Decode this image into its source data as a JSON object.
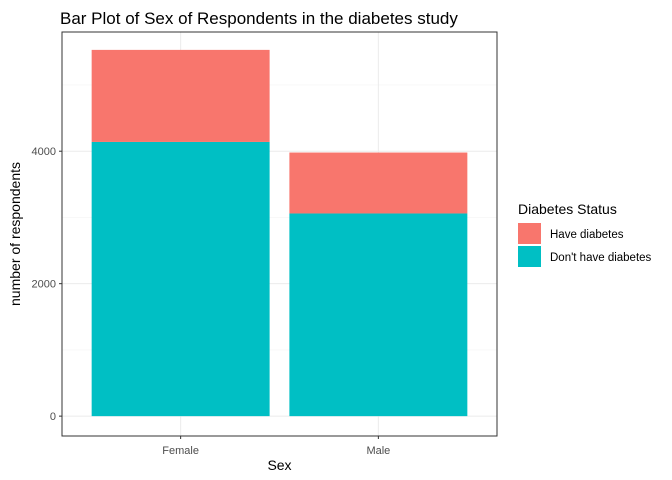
{
  "chart_data": {
    "type": "bar",
    "stacked": true,
    "title": "Bar Plot of Sex of Respondents in the diabetes study",
    "xlabel": "Sex",
    "ylabel": "number of respondents",
    "categories": [
      "Female",
      "Male"
    ],
    "y_ticks": [
      0,
      2000,
      4000
    ],
    "ylim": [
      -300,
      5800
    ],
    "grid": true,
    "legend": {
      "title": "Diabetes Status",
      "position": "right",
      "entries": [
        {
          "label": "Have diabetes",
          "color": "#F8766D"
        },
        {
          "label": "Don't have diabetes",
          "color": "#00BFC4"
        }
      ]
    },
    "series": [
      {
        "name": "Don't have diabetes",
        "color": "#00BFC4",
        "values": [
          4140,
          3060
        ]
      },
      {
        "name": "Have diabetes",
        "color": "#F8766D",
        "values": [
          1390,
          920
        ]
      }
    ]
  }
}
